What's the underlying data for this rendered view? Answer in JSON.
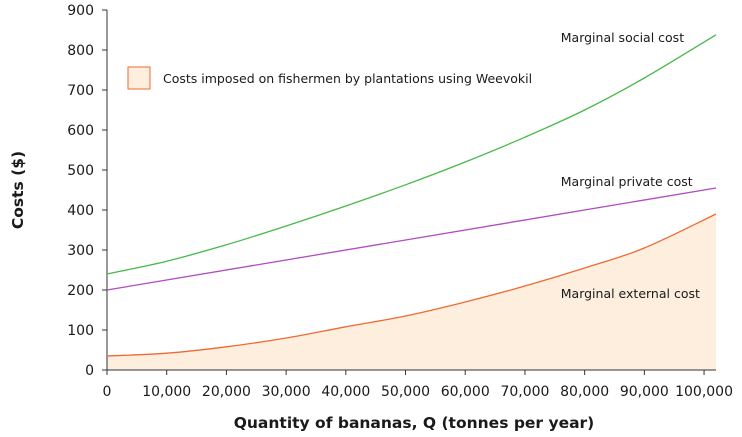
{
  "chart_data": {
    "type": "line",
    "xlabel": "Quantity of bananas, Q (tonnes per year)",
    "ylabel": "Costs ($)",
    "xlim": [
      0,
      102000
    ],
    "ylim": [
      0,
      900
    ],
    "x_ticks": [
      0,
      10000,
      20000,
      30000,
      40000,
      50000,
      60000,
      70000,
      80000,
      90000,
      100000
    ],
    "x_tick_labels": [
      "0",
      "10,000",
      "20,000",
      "30,000",
      "40,000",
      "50,000",
      "60,000",
      "70,000",
      "80,000",
      "90,000",
      "100,000"
    ],
    "y_ticks": [
      0,
      100,
      200,
      300,
      400,
      500,
      600,
      700,
      800,
      900
    ],
    "y_tick_labels": [
      "0",
      "100",
      "200",
      "300",
      "400",
      "500",
      "600",
      "700",
      "800",
      "900"
    ],
    "grid": false,
    "legend": {
      "placement": "top-left",
      "label": "Costs imposed on fishermen by plantations using Weevokil",
      "swatch_color": "#fdeedd",
      "swatch_border": "#ef6a32"
    },
    "series": [
      {
        "name": "Marginal social cost",
        "color": "#46b94a",
        "x": [
          0,
          10000,
          20000,
          30000,
          40000,
          50000,
          60000,
          70000,
          80000,
          90000,
          102000
        ],
        "values": [
          240,
          272,
          313,
          360,
          410,
          463,
          520,
          582,
          650,
          730,
          838
        ]
      },
      {
        "name": "Marginal private cost",
        "color": "#b04bc0",
        "x": [
          0,
          102000
        ],
        "values": [
          200,
          455
        ]
      },
      {
        "name": "Marginal external cost",
        "color": "#ef6a32",
        "area_fill": "#fdeedd",
        "x": [
          0,
          10000,
          20000,
          30000,
          40000,
          50000,
          60000,
          70000,
          80000,
          90000,
          102000
        ],
        "values": [
          35,
          42,
          58,
          80,
          108,
          135,
          170,
          210,
          255,
          305,
          390
        ]
      }
    ],
    "annotations": [
      {
        "series": "Marginal social cost",
        "text": "Marginal social cost",
        "at_x": 76000,
        "at_y": 830
      },
      {
        "series": "Marginal private cost",
        "text": "Marginal private cost",
        "at_x": 76000,
        "at_y": 470
      },
      {
        "series": "Marginal external cost",
        "text": "Marginal external cost",
        "at_x": 76000,
        "at_y": 190
      }
    ]
  }
}
